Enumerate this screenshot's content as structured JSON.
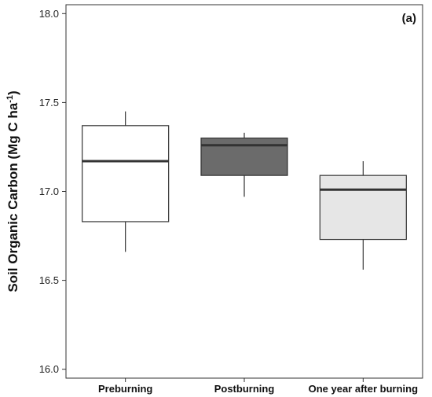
{
  "chart_data": {
    "type": "box",
    "panel_label": "(a)",
    "ylabel": {
      "main": "Soil Organic Carbon (Mg C ha",
      "superscript": "-1",
      "close": ")"
    },
    "ylim": [
      15.95,
      18.05
    ],
    "yticks": [
      {
        "value": 16.0,
        "label": "16.0"
      },
      {
        "value": 16.5,
        "label": "16.5"
      },
      {
        "value": 17.0,
        "label": "17.0"
      },
      {
        "value": 17.5,
        "label": "17.5"
      },
      {
        "value": 18.0,
        "label": "18.0"
      }
    ],
    "grid": false,
    "categories": [
      "Preburning",
      "Postburning",
      "One year after burning"
    ],
    "boxes": [
      {
        "category": "Preburning",
        "whisker_low": 16.66,
        "q1": 16.83,
        "median": 17.17,
        "q3": 17.37,
        "whisker_high": 17.45,
        "fill": "#ffffff"
      },
      {
        "category": "Postburning",
        "whisker_low": 16.97,
        "q1": 17.09,
        "median": 17.26,
        "q3": 17.3,
        "whisker_high": 17.33,
        "fill": "#6b6b6b"
      },
      {
        "category": "One year after burning",
        "whisker_low": 16.56,
        "q1": 16.73,
        "median": 17.01,
        "q3": 17.09,
        "whisker_high": 17.17,
        "fill": "#e6e6e6"
      }
    ]
  }
}
